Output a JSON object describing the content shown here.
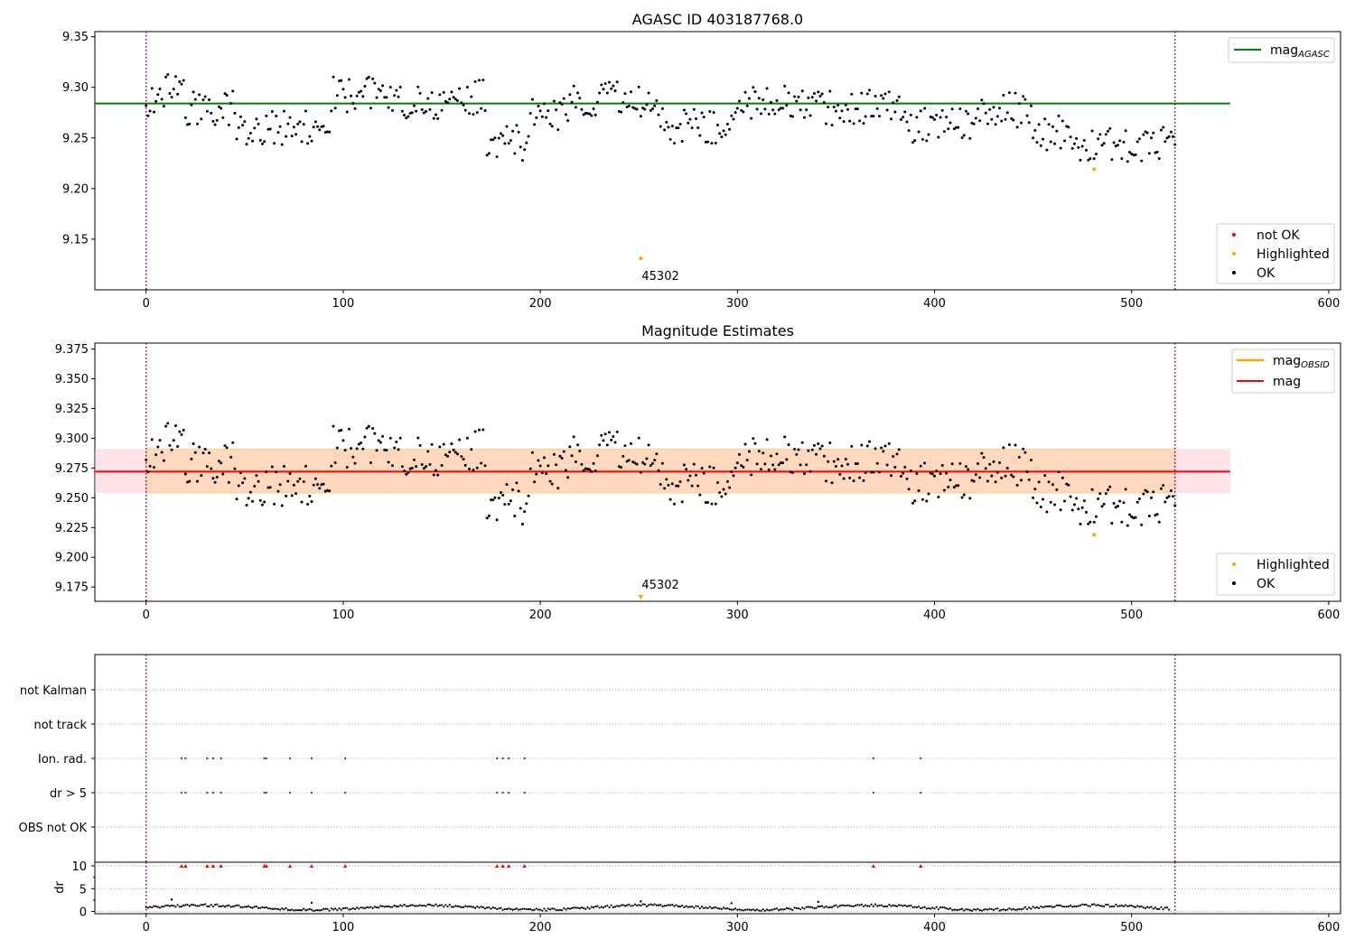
{
  "chart_data": [
    {
      "type": "scatter",
      "title": "AGASC ID 403187768.0",
      "xlim": [
        -26,
        606
      ],
      "ylim": [
        9.1,
        9.355
      ],
      "xticks": [
        0,
        100,
        200,
        300,
        400,
        500,
        600
      ],
      "yticks": [
        9.15,
        9.2,
        9.25,
        9.3,
        9.35
      ],
      "ytick_labels": [
        "9.15",
        "9.20",
        "9.25",
        "9.30",
        "9.35"
      ],
      "vlines": [
        0,
        522
      ],
      "hline": {
        "name": "magAGASC",
        "label_base": "mag",
        "label_sub": "AGASC",
        "y": 9.284,
        "x_range": [
          -26,
          550
        ],
        "color": "#008000"
      },
      "highlighted": [
        {
          "x": 251,
          "y": 9.131
        },
        {
          "x": 481,
          "y": 9.219
        }
      ],
      "annotation": {
        "text": "45302",
        "x": 251,
        "y": 9.131
      },
      "legend_lines_position": "upper right",
      "legend_points_position": "lower right",
      "legend_points": [
        {
          "label": "not OK",
          "color": "#ff0000"
        },
        {
          "label": "Highlighted",
          "color": "#ffa500"
        },
        {
          "label": "OK",
          "color": "#000000"
        }
      ]
    },
    {
      "type": "scatter",
      "title": "Magnitude Estimates",
      "xlim": [
        -26,
        606
      ],
      "ylim": [
        9.163,
        9.38
      ],
      "xticks": [
        0,
        100,
        200,
        300,
        400,
        500,
        600
      ],
      "yticks": [
        9.175,
        9.2,
        9.225,
        9.25,
        9.275,
        9.3,
        9.325,
        9.35,
        9.375
      ],
      "ytick_labels": [
        "9.175",
        "9.200",
        "9.225",
        "9.250",
        "9.275",
        "9.300",
        "9.325",
        "9.350",
        "9.375"
      ],
      "vlines": [
        0,
        522
      ],
      "hline": {
        "name": "mag",
        "label_base": "mag",
        "y": 9.272,
        "x_range": [
          -26,
          550
        ],
        "color": "#ff0000"
      },
      "obsid_line": {
        "name": "magOBSID",
        "label_base": "mag",
        "label_sub": "OBSID",
        "color": "#ffa500"
      },
      "band_pink": {
        "y_range": [
          9.254,
          9.291
        ],
        "x_range": [
          -26,
          550
        ]
      },
      "band_orange": {
        "y_range": [
          9.254,
          9.291
        ],
        "x_range": [
          0,
          522
        ]
      },
      "highlighted": [
        {
          "x": 481,
          "y": 9.219
        }
      ],
      "annotation": {
        "text": "45302",
        "x": 251,
        "y": 9.166
      },
      "legend_lines_position": "upper right",
      "legend_points_position": "lower right",
      "legend_points": [
        {
          "label": "Highlighted",
          "color": "#ffa500"
        },
        {
          "label": "OK",
          "color": "#000000"
        }
      ]
    },
    {
      "type": "scatter",
      "title": "",
      "xlim": [
        -26,
        606
      ],
      "vlines": [
        0,
        522
      ],
      "flag_rows": [
        "not Kalman",
        "not track",
        "Ion. rad.",
        "dr > 5",
        "OBS not OK"
      ],
      "flag_x": [
        18,
        20,
        31,
        34,
        38,
        60,
        61,
        73,
        84,
        101,
        178,
        181,
        184,
        192,
        369,
        393
      ],
      "flagged_rows": [
        "Ion. rad.",
        "dr > 5"
      ]
    },
    {
      "type": "scatter",
      "title": "",
      "ylabel": "dr",
      "xlim": [
        -26,
        606
      ],
      "ylim": [
        -0.5,
        10.8
      ],
      "xticks": [
        0,
        100,
        200,
        300,
        400,
        500,
        600
      ],
      "yticks": [
        0,
        5,
        10
      ],
      "ytick_labels": [
        "0",
        "5",
        "10"
      ],
      "vlines": [
        0,
        522
      ],
      "clipped_y": 10,
      "clipped_x": [
        18,
        20,
        31,
        34,
        38,
        60,
        61,
        73,
        84,
        101,
        178,
        181,
        184,
        192,
        369,
        393
      ],
      "outliers": [
        {
          "x": 13,
          "y": 2.6
        },
        {
          "x": 84,
          "y": 1.9
        },
        {
          "x": 251,
          "y": 2.2
        },
        {
          "x": 297,
          "y": 1.8
        },
        {
          "x": 341,
          "y": 2.1
        }
      ],
      "data_points_count": 520
    }
  ]
}
